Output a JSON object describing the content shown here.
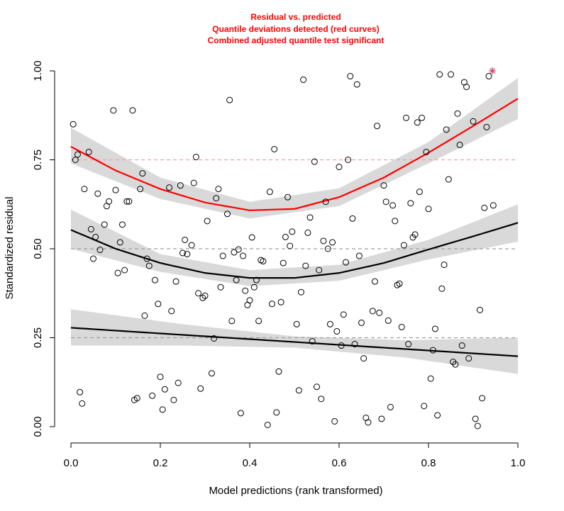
{
  "chart_data": {
    "type": "scatter",
    "title_lines": [
      "Residual vs. predicted",
      "Quantile deviations detected (red curves)",
      "Combined adjusted quantile test significant"
    ],
    "xlabel": "Model predictions (rank transformed)",
    "ylabel": "Standardized residual",
    "xlim": [
      0,
      1
    ],
    "ylim": [
      0,
      1
    ],
    "x_ticks": [
      "0.0",
      "0.2",
      "0.4",
      "0.6",
      "0.8",
      "1.0"
    ],
    "y_ticks": [
      "0.00",
      "0.25",
      "0.50",
      "0.75",
      "1.00"
    ],
    "reference_lines": [
      0.25,
      0.5,
      0.75
    ],
    "reference_colors": [
      "#a0a0a0",
      "#a0a0a0",
      "#f4a0a0"
    ],
    "colors": {
      "points": "#000000",
      "fit_ok": "#000000",
      "fit_deviation": "#ff0000",
      "band": "#d9d9d9",
      "outlier": "#d04070"
    },
    "quantile_fits": [
      {
        "quantile": 0.25,
        "deviation": false,
        "fit": [
          [
            0.0,
            0.278
          ],
          [
            0.25,
            0.258
          ],
          [
            0.5,
            0.238
          ],
          [
            0.75,
            0.218
          ],
          [
            1.0,
            0.198
          ]
        ],
        "band_lower": [
          [
            0.0,
            0.228
          ],
          [
            0.25,
            0.228
          ],
          [
            0.5,
            0.222
          ],
          [
            0.75,
            0.194
          ],
          [
            1.0,
            0.148
          ]
        ],
        "band_upper": [
          [
            0.0,
            0.33
          ],
          [
            0.25,
            0.288
          ],
          [
            0.5,
            0.254
          ],
          [
            0.75,
            0.243
          ],
          [
            1.0,
            0.25
          ]
        ]
      },
      {
        "quantile": 0.5,
        "deviation": false,
        "fit": [
          [
            0.0,
            0.553
          ],
          [
            0.1,
            0.5
          ],
          [
            0.2,
            0.46
          ],
          [
            0.3,
            0.432
          ],
          [
            0.4,
            0.418
          ],
          [
            0.5,
            0.418
          ],
          [
            0.6,
            0.432
          ],
          [
            0.7,
            0.46
          ],
          [
            0.8,
            0.498
          ],
          [
            0.9,
            0.535
          ],
          [
            1.0,
            0.573
          ]
        ],
        "band_lower": [
          [
            0.0,
            0.5
          ],
          [
            0.2,
            0.435
          ],
          [
            0.4,
            0.395
          ],
          [
            0.6,
            0.41
          ],
          [
            0.8,
            0.47
          ],
          [
            1.0,
            0.52
          ]
        ],
        "band_upper": [
          [
            0.0,
            0.61
          ],
          [
            0.2,
            0.485
          ],
          [
            0.4,
            0.44
          ],
          [
            0.6,
            0.455
          ],
          [
            0.8,
            0.525
          ],
          [
            1.0,
            0.625
          ]
        ]
      },
      {
        "quantile": 0.75,
        "deviation": true,
        "fit": [
          [
            0.0,
            0.787
          ],
          [
            0.1,
            0.72
          ],
          [
            0.2,
            0.668
          ],
          [
            0.3,
            0.63
          ],
          [
            0.4,
            0.608
          ],
          [
            0.5,
            0.612
          ],
          [
            0.6,
            0.645
          ],
          [
            0.7,
            0.7
          ],
          [
            0.8,
            0.77
          ],
          [
            0.9,
            0.845
          ],
          [
            1.0,
            0.922
          ]
        ],
        "band_lower": [
          [
            0.0,
            0.74
          ],
          [
            0.2,
            0.64
          ],
          [
            0.4,
            0.585
          ],
          [
            0.6,
            0.62
          ],
          [
            0.8,
            0.74
          ],
          [
            1.0,
            0.865
          ]
        ],
        "band_upper": [
          [
            0.0,
            0.84
          ],
          [
            0.2,
            0.7
          ],
          [
            0.4,
            0.632
          ],
          [
            0.6,
            0.67
          ],
          [
            0.8,
            0.8
          ],
          [
            1.0,
            0.98
          ]
        ]
      }
    ],
    "outliers": [
      [
        0.943,
        1.0
      ]
    ],
    "points": [
      [
        0.005,
        0.85
      ],
      [
        0.01,
        0.75
      ],
      [
        0.015,
        0.765
      ],
      [
        0.02,
        0.097
      ],
      [
        0.025,
        0.065
      ],
      [
        0.03,
        0.668
      ],
      [
        0.04,
        0.772
      ],
      [
        0.045,
        0.555
      ],
      [
        0.05,
        0.472
      ],
      [
        0.055,
        0.533
      ],
      [
        0.06,
        0.655
      ],
      [
        0.065,
        0.497
      ],
      [
        0.075,
        0.568
      ],
      [
        0.08,
        0.62
      ],
      [
        0.085,
        0.633
      ],
      [
        0.095,
        0.889
      ],
      [
        0.1,
        0.665
      ],
      [
        0.105,
        0.432
      ],
      [
        0.11,
        0.518
      ],
      [
        0.115,
        0.568
      ],
      [
        0.12,
        0.44
      ],
      [
        0.125,
        0.633
      ],
      [
        0.13,
        0.633
      ],
      [
        0.138,
        0.889
      ],
      [
        0.142,
        0.075
      ],
      [
        0.148,
        0.08
      ],
      [
        0.155,
        0.668
      ],
      [
        0.16,
        0.712
      ],
      [
        0.165,
        0.312
      ],
      [
        0.17,
        0.472
      ],
      [
        0.175,
        0.452
      ],
      [
        0.182,
        0.087
      ],
      [
        0.188,
        0.412
      ],
      [
        0.195,
        0.345
      ],
      [
        0.2,
        0.14
      ],
      [
        0.205,
        0.048
      ],
      [
        0.21,
        0.105
      ],
      [
        0.22,
        0.672
      ],
      [
        0.225,
        0.325
      ],
      [
        0.23,
        0.075
      ],
      [
        0.235,
        0.408
      ],
      [
        0.24,
        0.123
      ],
      [
        0.245,
        0.678
      ],
      [
        0.25,
        0.488
      ],
      [
        0.255,
        0.525
      ],
      [
        0.26,
        0.485
      ],
      [
        0.27,
        0.51
      ],
      [
        0.275,
        0.685
      ],
      [
        0.28,
        0.758
      ],
      [
        0.285,
        0.375
      ],
      [
        0.29,
        0.107
      ],
      [
        0.295,
        0.362
      ],
      [
        0.3,
        0.368
      ],
      [
        0.305,
        0.578
      ],
      [
        0.315,
        0.15
      ],
      [
        0.32,
        0.248
      ],
      [
        0.325,
        0.642
      ],
      [
        0.33,
        0.668
      ],
      [
        0.335,
        0.392
      ],
      [
        0.34,
        0.48
      ],
      [
        0.35,
        0.598
      ],
      [
        0.355,
        0.918
      ],
      [
        0.36,
        0.297
      ],
      [
        0.365,
        0.49
      ],
      [
        0.37,
        0.412
      ],
      [
        0.375,
        0.498
      ],
      [
        0.38,
        0.038
      ],
      [
        0.385,
        0.48
      ],
      [
        0.39,
        0.382
      ],
      [
        0.395,
        0.342
      ],
      [
        0.4,
        0.355
      ],
      [
        0.405,
        0.532
      ],
      [
        0.41,
        0.392
      ],
      [
        0.415,
        0.412
      ],
      [
        0.42,
        0.297
      ],
      [
        0.425,
        0.468
      ],
      [
        0.43,
        0.465
      ],
      [
        0.44,
        0.005
      ],
      [
        0.445,
        0.66
      ],
      [
        0.45,
        0.345
      ],
      [
        0.455,
        0.78
      ],
      [
        0.46,
        0.04
      ],
      [
        0.465,
        0.155
      ],
      [
        0.47,
        0.35
      ],
      [
        0.475,
        0.46
      ],
      [
        0.48,
        0.533
      ],
      [
        0.485,
        0.645
      ],
      [
        0.49,
        0.508
      ],
      [
        0.495,
        0.548
      ],
      [
        0.505,
        0.288
      ],
      [
        0.51,
        0.102
      ],
      [
        0.515,
        0.378
      ],
      [
        0.52,
        0.975
      ],
      [
        0.525,
        0.452
      ],
      [
        0.53,
        0.545
      ],
      [
        0.535,
        0.588
      ],
      [
        0.54,
        0.24
      ],
      [
        0.545,
        0.745
      ],
      [
        0.55,
        0.112
      ],
      [
        0.555,
        0.44
      ],
      [
        0.56,
        0.078
      ],
      [
        0.565,
        0.522
      ],
      [
        0.57,
        0.632
      ],
      [
        0.575,
        0.5
      ],
      [
        0.58,
        0.288
      ],
      [
        0.585,
        0.518
      ],
      [
        0.59,
        0.015
      ],
      [
        0.595,
        0.268
      ],
      [
        0.6,
        0.73
      ],
      [
        0.605,
        0.228
      ],
      [
        0.61,
        0.315
      ],
      [
        0.615,
        0.462
      ],
      [
        0.62,
        0.75
      ],
      [
        0.625,
        0.985
      ],
      [
        0.63,
        0.585
      ],
      [
        0.635,
        0.232
      ],
      [
        0.64,
        0.962
      ],
      [
        0.645,
        0.48
      ],
      [
        0.65,
        0.292
      ],
      [
        0.655,
        0.192
      ],
      [
        0.66,
        0.025
      ],
      [
        0.665,
        0.012
      ],
      [
        0.675,
        0.325
      ],
      [
        0.68,
        0.408
      ],
      [
        0.685,
        0.845
      ],
      [
        0.69,
        0.32
      ],
      [
        0.695,
        0.022
      ],
      [
        0.7,
        0.678
      ],
      [
        0.705,
        0.632
      ],
      [
        0.71,
        0.298
      ],
      [
        0.715,
        0.055
      ],
      [
        0.72,
        0.622
      ],
      [
        0.725,
        0.578
      ],
      [
        0.73,
        0.398
      ],
      [
        0.735,
        0.402
      ],
      [
        0.74,
        0.28
      ],
      [
        0.745,
        0.51
      ],
      [
        0.75,
        0.868
      ],
      [
        0.755,
        0.232
      ],
      [
        0.76,
        0.628
      ],
      [
        0.765,
        0.532
      ],
      [
        0.77,
        0.54
      ],
      [
        0.775,
        0.855
      ],
      [
        0.78,
        0.66
      ],
      [
        0.785,
        0.868
      ],
      [
        0.79,
        0.058
      ],
      [
        0.795,
        0.772
      ],
      [
        0.8,
        0.612
      ],
      [
        0.805,
        0.135
      ],
      [
        0.81,
        0.215
      ],
      [
        0.815,
        0.275
      ],
      [
        0.82,
        0.032
      ],
      [
        0.825,
        0.99
      ],
      [
        0.83,
        0.388
      ],
      [
        0.835,
        0.455
      ],
      [
        0.84,
        0.835
      ],
      [
        0.845,
        0.695
      ],
      [
        0.85,
        0.99
      ],
      [
        0.855,
        0.182
      ],
      [
        0.86,
        0.175
      ],
      [
        0.865,
        0.88
      ],
      [
        0.87,
        0.792
      ],
      [
        0.875,
        0.228
      ],
      [
        0.88,
        0.968
      ],
      [
        0.885,
        0.955
      ],
      [
        0.89,
        0.192
      ],
      [
        0.9,
        0.858
      ],
      [
        0.905,
        0.022
      ],
      [
        0.91,
        0.002
      ],
      [
        0.915,
        0.328
      ],
      [
        0.92,
        0.08
      ],
      [
        0.925,
        0.615
      ],
      [
        0.93,
        0.842
      ],
      [
        0.935,
        0.985
      ],
      [
        0.945,
        0.622
      ]
    ]
  }
}
